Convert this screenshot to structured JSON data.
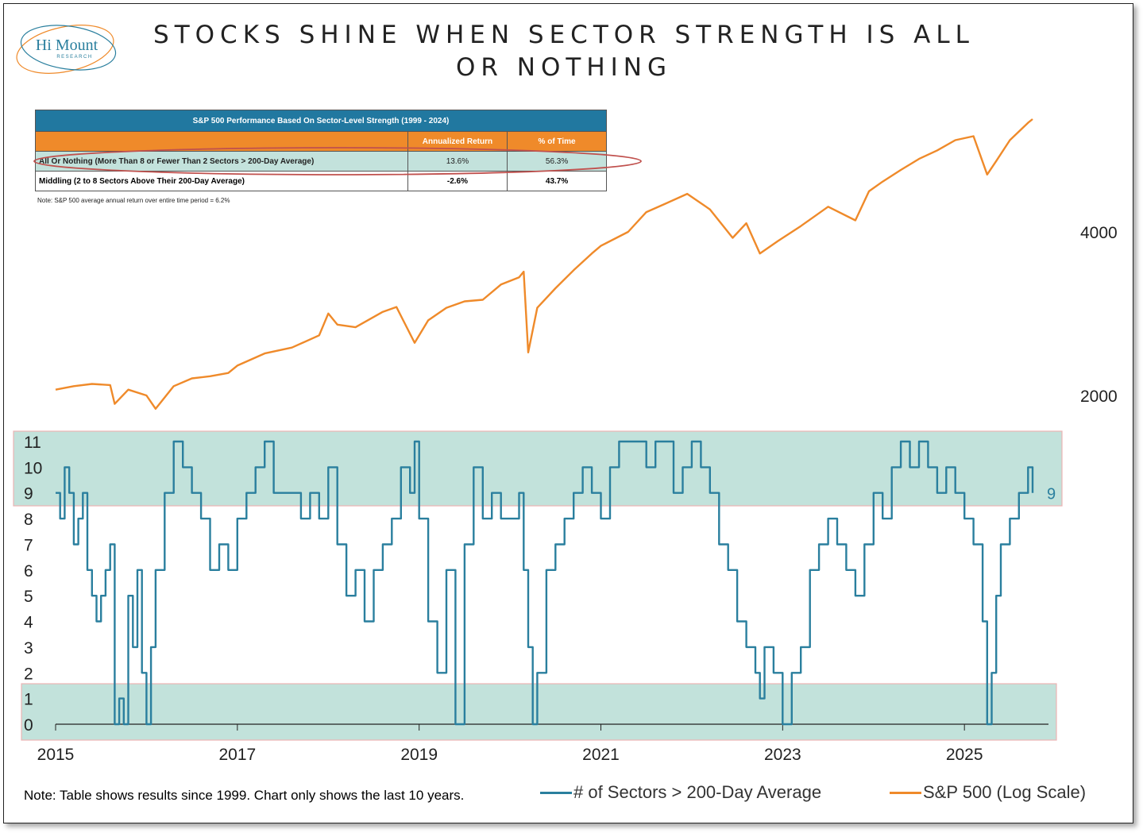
{
  "title_line1": "STOCKS SHINE WHEN SECTOR STRENGTH IS ALL",
  "title_line2": "OR NOTHING",
  "logo": {
    "name": "Hi Mount",
    "sub": "RESEARCH"
  },
  "colors": {
    "teal": "#2a7f9e",
    "orange": "#ef8a2a",
    "band": "#b8ded5",
    "header_blue": "#2178a0"
  },
  "table": {
    "title": "S&P 500 Performance Based On Sector-Level Strength (1999 - 2024)",
    "col1": "Annualized Return",
    "col2": "% of Time",
    "rows": [
      {
        "label": "All Or Nothing (More Than 8 or Fewer Than 2 Sectors > 200-Day Average)",
        "ret": "13.6%",
        "time": "56.3%"
      },
      {
        "label": "Middling (2 to 8 Sectors Above Their 200-Day Average)",
        "ret": "-2.6%",
        "time": "43.7%"
      }
    ],
    "note": "Note: S&P 500 average annual return over entire time period = 6.2%"
  },
  "footnote": "Note: Table shows results since 1999. Chart only shows the last 10 years.",
  "legend": {
    "sectors": "# of Sectors > 200-Day Average",
    "sp500": "S&P 500 (Log Scale)"
  },
  "chart_data": {
    "type": "line",
    "x_range": [
      2015.0,
      2025.75
    ],
    "x_ticks": [
      "2015",
      "2017",
      "2019",
      "2021",
      "2023",
      "2025"
    ],
    "y_left_ticks": [
      "0",
      "1",
      "2",
      "3",
      "4",
      "5",
      "6",
      "7",
      "8",
      "9",
      "10",
      "11"
    ],
    "y_left_range": [
      0,
      11
    ],
    "y_right_ticks": [
      "2000",
      "4000"
    ],
    "y_right_scale": "log",
    "last_value_label": "9",
    "highlight_bands": [
      [
        8.5,
        11.5
      ],
      [
        -0.2,
        1.5
      ]
    ],
    "series": [
      {
        "name": "# of Sectors > 200-Day Average",
        "axis": "left",
        "x": [
          2015.0,
          2015.05,
          2015.1,
          2015.15,
          2015.2,
          2015.25,
          2015.3,
          2015.35,
          2015.4,
          2015.45,
          2015.5,
          2015.55,
          2015.6,
          2015.65,
          2015.7,
          2015.75,
          2015.8,
          2015.85,
          2015.9,
          2015.95,
          2016.0,
          2016.05,
          2016.1,
          2016.2,
          2016.3,
          2016.4,
          2016.5,
          2016.6,
          2016.7,
          2016.8,
          2016.9,
          2017.0,
          2017.1,
          2017.2,
          2017.3,
          2017.4,
          2017.5,
          2017.6,
          2017.7,
          2017.8,
          2017.9,
          2018.0,
          2018.1,
          2018.2,
          2018.3,
          2018.4,
          2018.5,
          2018.6,
          2018.7,
          2018.8,
          2018.9,
          2018.95,
          2019.0,
          2019.1,
          2019.2,
          2019.3,
          2019.4,
          2019.5,
          2019.6,
          2019.7,
          2019.8,
          2019.9,
          2020.0,
          2020.1,
          2020.15,
          2020.2,
          2020.25,
          2020.3,
          2020.4,
          2020.5,
          2020.6,
          2020.7,
          2020.8,
          2020.9,
          2021.0,
          2021.1,
          2021.2,
          2021.3,
          2021.4,
          2021.5,
          2021.6,
          2021.7,
          2021.8,
          2021.9,
          2022.0,
          2022.1,
          2022.2,
          2022.3,
          2022.4,
          2022.5,
          2022.6,
          2022.7,
          2022.75,
          2022.8,
          2022.9,
          2023.0,
          2023.1,
          2023.2,
          2023.3,
          2023.4,
          2023.5,
          2023.6,
          2023.7,
          2023.8,
          2023.9,
          2024.0,
          2024.1,
          2024.2,
          2024.3,
          2024.4,
          2024.5,
          2024.6,
          2024.7,
          2024.8,
          2024.9,
          2025.0,
          2025.1,
          2025.2,
          2025.25,
          2025.3,
          2025.35,
          2025.4,
          2025.5,
          2025.6,
          2025.7,
          2025.75
        ],
        "values": [
          9,
          8,
          10,
          9,
          7,
          8,
          9,
          6,
          5,
          4,
          5,
          6,
          7,
          0,
          1,
          0,
          5,
          3,
          6,
          2,
          0,
          3,
          6,
          9,
          11,
          10,
          9,
          8,
          6,
          7,
          6,
          8,
          9,
          10,
          11,
          9,
          9,
          9,
          8,
          9,
          8,
          10,
          7,
          5,
          6,
          4,
          6,
          7,
          8,
          10,
          9,
          11,
          8,
          4,
          2,
          6,
          0,
          7,
          10,
          8,
          9,
          8,
          8,
          9,
          6,
          3,
          0,
          2,
          6,
          7,
          8,
          9,
          10,
          9,
          8,
          10,
          11,
          11,
          11,
          10,
          11,
          11,
          9,
          10,
          11,
          10,
          9,
          7,
          6,
          4,
          3,
          2,
          1,
          3,
          2,
          0,
          2,
          3,
          6,
          7,
          8,
          7,
          6,
          5,
          7,
          9,
          8,
          10,
          11,
          10,
          11,
          10,
          9,
          10,
          9,
          8,
          7,
          4,
          0,
          2,
          5,
          7,
          8,
          9,
          10,
          9
        ]
      },
      {
        "name": "S&P 500 (Log Scale)",
        "axis": "right",
        "x": [
          2015.0,
          2015.2,
          2015.4,
          2015.6,
          2015.65,
          2015.8,
          2016.0,
          2016.1,
          2016.3,
          2016.5,
          2016.7,
          2016.9,
          2017.0,
          2017.3,
          2017.6,
          2017.9,
          2018.0,
          2018.1,
          2018.3,
          2018.6,
          2018.75,
          2018.95,
          2019.1,
          2019.3,
          2019.5,
          2019.7,
          2019.9,
          2020.1,
          2020.15,
          2020.2,
          2020.3,
          2020.5,
          2020.7,
          2020.9,
          2021.0,
          2021.3,
          2021.5,
          2021.7,
          2021.95,
          2022.2,
          2022.45,
          2022.6,
          2022.75,
          2022.95,
          2023.2,
          2023.5,
          2023.8,
          2023.95,
          2024.1,
          2024.3,
          2024.5,
          2024.7,
          2024.9,
          2025.1,
          2025.25,
          2025.35,
          2025.5,
          2025.7,
          2025.75
        ],
        "values": [
          2050,
          2080,
          2100,
          2090,
          1930,
          2050,
          2000,
          1890,
          2080,
          2150,
          2170,
          2200,
          2270,
          2390,
          2450,
          2580,
          2830,
          2700,
          2670,
          2850,
          2910,
          2500,
          2750,
          2900,
          2980,
          3000,
          3200,
          3300,
          3380,
          2400,
          2900,
          3150,
          3400,
          3650,
          3770,
          4000,
          4350,
          4500,
          4700,
          4400,
          3900,
          4150,
          3650,
          3850,
          4100,
          4450,
          4200,
          4750,
          4950,
          5200,
          5450,
          5650,
          5900,
          6000,
          5100,
          5400,
          5900,
          6350,
          6450
        ]
      }
    ]
  }
}
